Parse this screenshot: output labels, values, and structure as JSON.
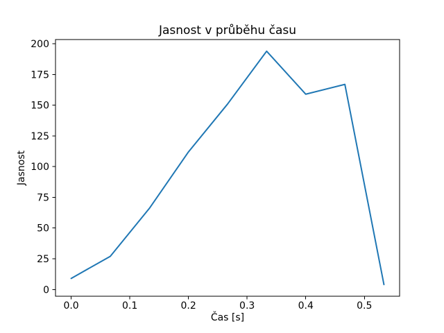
{
  "figure": {
    "background": "#ffffff",
    "text_color": "#000000"
  },
  "chart_data": {
    "type": "line",
    "title": "Jasnost v průběhu času",
    "xlabel": "Čas [s]",
    "ylabel": "Jasnost",
    "x": [
      0.0,
      0.0667,
      0.1333,
      0.2,
      0.2667,
      0.3333,
      0.4,
      0.4667,
      0.5333
    ],
    "y": [
      9,
      27,
      66,
      112,
      151,
      194,
      159,
      167,
      4
    ],
    "xlim": [
      -0.0267,
      0.56
    ],
    "ylim": [
      -5.5,
      203.5
    ],
    "xticks": {
      "values": [
        0.0,
        0.1,
        0.2,
        0.3,
        0.4,
        0.5
      ],
      "labels": [
        "0.0",
        "0.1",
        "0.2",
        "0.3",
        "0.4",
        "0.5"
      ]
    },
    "yticks": {
      "values": [
        0,
        25,
        50,
        75,
        100,
        125,
        150,
        175,
        200
      ],
      "labels": [
        "0",
        "25",
        "50",
        "75",
        "100",
        "125",
        "150",
        "175",
        "200"
      ]
    },
    "grid": false,
    "legend": "none",
    "line_color": "#1f77b4",
    "line_width": 2,
    "spine_color": "#000000"
  }
}
